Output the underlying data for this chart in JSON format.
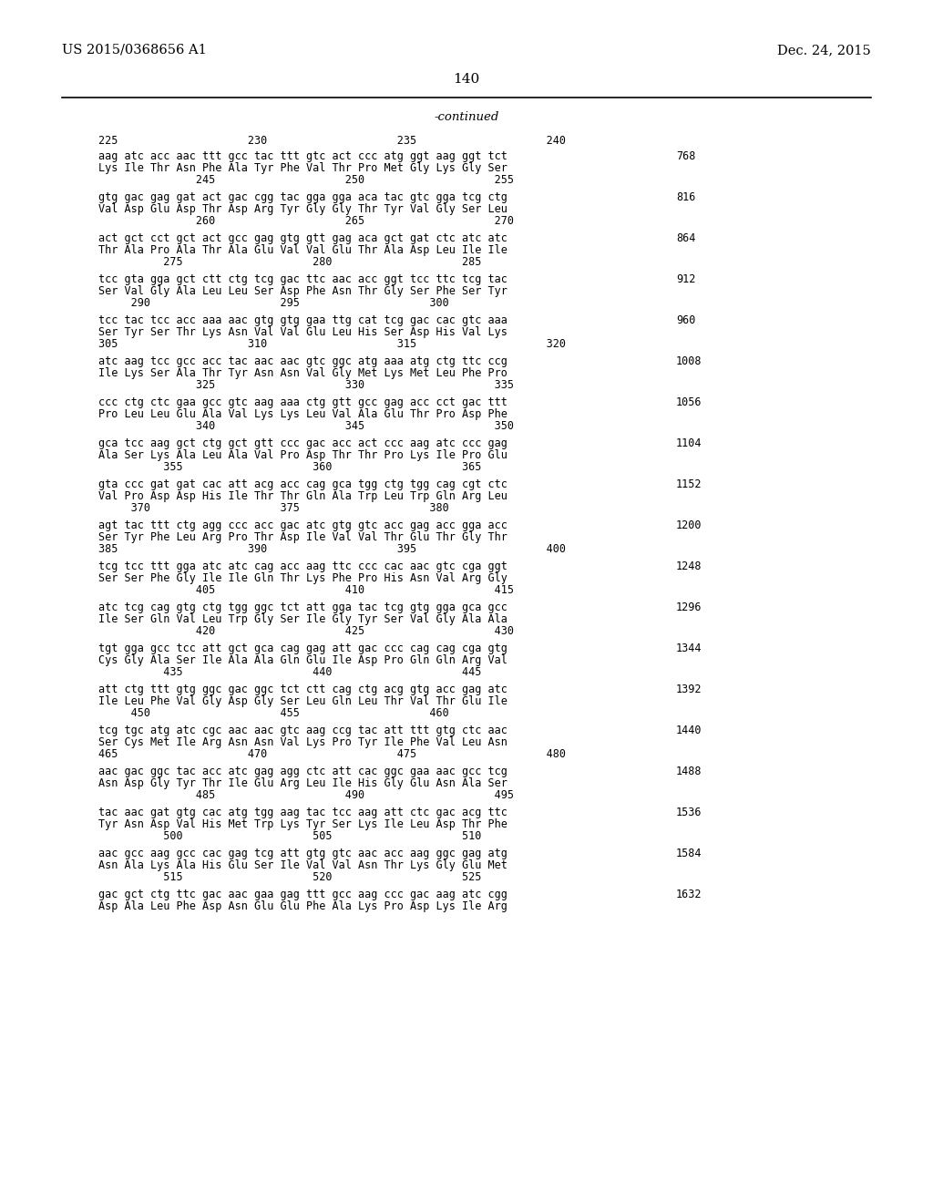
{
  "header_left": "US 2015/0368656 A1",
  "header_right": "Dec. 24, 2015",
  "page_number": "140",
  "continued_label": "-continued",
  "background_color": "#ffffff",
  "text_color": "#000000",
  "top_ruler": "225                    230                    235                    240",
  "sequence_blocks": [
    {
      "dna_line": "aag atc acc aac ttt gcc tac ttt gtc act ccc atg ggt aag ggt tct",
      "aa_line": "Lys Ile Thr Asn Phe Ala Tyr Phe Val Thr Pro Met Gly Lys Gly Ser",
      "sub_ruler": "               245                    250                    255",
      "num": "768"
    },
    {
      "dna_line": "gtg gac gag gat act gac cgg tac gga gga aca tac gtc gga tcg ctg",
      "aa_line": "Val Asp Glu Asp Thr Asp Arg Tyr Gly Gly Thr Tyr Val Gly Ser Leu",
      "sub_ruler": "               260                    265                    270",
      "num": "816"
    },
    {
      "dna_line": "act gct cct gct act gcc gag gtg gtt gag aca gct gat ctc atc atc",
      "aa_line": "Thr Ala Pro Ala Thr Ala Glu Val Val Glu Thr Ala Asp Leu Ile Ile",
      "sub_ruler": "          275                    280                    285",
      "num": "864"
    },
    {
      "dna_line": "tcc gta gga gct ctt ctg tcg gac ttc aac acc ggt tcc ttc tcg tac",
      "aa_line": "Ser Val Gly Ala Leu Leu Ser Asp Phe Asn Thr Gly Ser Phe Ser Tyr",
      "sub_ruler": "     290                    295                    300",
      "num": "912"
    },
    {
      "dna_line": "tcc tac tcc acc aaa aac gtg gtg gaa ttg cat tcg gac cac gtc aaa",
      "aa_line": "Ser Tyr Ser Thr Lys Asn Val Val Glu Leu His Ser Asp His Val Lys",
      "sub_ruler": "305                    310                    315                    320",
      "num": "960"
    },
    {
      "dna_line": "atc aag tcc gcc acc tac aac aac gtc ggc atg aaa atg ctg ttc ccg",
      "aa_line": "Ile Lys Ser Ala Thr Tyr Asn Asn Val Gly Met Lys Met Leu Phe Pro",
      "sub_ruler": "               325                    330                    335",
      "num": "1008"
    },
    {
      "dna_line": "ccc ctg ctc gaa gcc gtc aag aaa ctg gtt gcc gag acc cct gac ttt",
      "aa_line": "Pro Leu Leu Glu Ala Val Lys Lys Leu Val Ala Glu Thr Pro Asp Phe",
      "sub_ruler": "               340                    345                    350",
      "num": "1056"
    },
    {
      "dna_line": "gca tcc aag gct ctg gct gtt ccc gac acc act ccc aag atc ccc gag",
      "aa_line": "Ala Ser Lys Ala Leu Ala Val Pro Asp Thr Thr Pro Lys Ile Pro Glu",
      "sub_ruler": "          355                    360                    365",
      "num": "1104"
    },
    {
      "dna_line": "gta ccc gat gat cac att acg acc cag gca tgg ctg tgg cag cgt ctc",
      "aa_line": "Val Pro Asp Asp His Ile Thr Thr Gln Ala Trp Leu Trp Gln Arg Leu",
      "sub_ruler": "     370                    375                    380",
      "num": "1152"
    },
    {
      "dna_line": "agt tac ttt ctg agg ccc acc gac atc gtg gtc acc gag acc gga acc",
      "aa_line": "Ser Tyr Phe Leu Arg Pro Thr Asp Ile Val Val Thr Glu Thr Gly Thr",
      "sub_ruler": "385                    390                    395                    400",
      "num": "1200"
    },
    {
      "dna_line": "tcg tcc ttt gga atc atc cag acc aag ttc ccc cac aac gtc cga ggt",
      "aa_line": "Ser Ser Phe Gly Ile Ile Gln Thr Lys Phe Pro His Asn Val Arg Gly",
      "sub_ruler": "               405                    410                    415",
      "num": "1248"
    },
    {
      "dna_line": "atc tcg cag gtg ctg tgg ggc tct att gga tac tcg gtg gga gca gcc",
      "aa_line": "Ile Ser Gln Val Leu Trp Gly Ser Ile Gly Tyr Ser Val Gly Ala Ala",
      "sub_ruler": "               420                    425                    430",
      "num": "1296"
    },
    {
      "dna_line": "tgt gga gcc tcc att gct gca cag gag att gac ccc cag cag cga gtg",
      "aa_line": "Cys Gly Ala Ser Ile Ala Ala Gln Glu Ile Asp Pro Gln Gln Arg Val",
      "sub_ruler": "          435                    440                    445",
      "num": "1344"
    },
    {
      "dna_line": "att ctg ttt gtg ggc gac ggc tct ctt cag ctg acg gtg acc gag atc",
      "aa_line": "Ile Leu Phe Val Gly Asp Gly Ser Leu Gln Leu Thr Val Thr Glu Ile",
      "sub_ruler": "     450                    455                    460",
      "num": "1392"
    },
    {
      "dna_line": "tcg tgc atg atc cgc aac aac gtc aag ccg tac att ttt gtg ctc aac",
      "aa_line": "Ser Cys Met Ile Arg Asn Asn Val Lys Pro Tyr Ile Phe Val Leu Asn",
      "sub_ruler": "465                    470                    475                    480",
      "num": "1440"
    },
    {
      "dna_line": "aac gac ggc tac acc atc gag agg ctc att cac ggc gaa aac gcc tcg",
      "aa_line": "Asn Asp Gly Tyr Thr Ile Glu Arg Leu Ile His Gly Glu Asn Ala Ser",
      "sub_ruler": "               485                    490                    495",
      "num": "1488"
    },
    {
      "dna_line": "tac aac gat gtg cac atg tgg aag tac tcc aag att ctc gac acg ttc",
      "aa_line": "Tyr Asn Asp Val His Met Trp Lys Tyr Ser Lys Ile Leu Asp Thr Phe",
      "sub_ruler": "          500                    505                    510",
      "num": "1536"
    },
    {
      "dna_line": "aac gcc aag gcc cac gag tcg att gtg gtc aac acc aag ggc gag atg",
      "aa_line": "Asn Ala Lys Ala His Glu Ser Ile Val Val Asn Thr Lys Gly Glu Met",
      "sub_ruler": "          515                    520                    525",
      "num": "1584"
    },
    {
      "dna_line": "gac gct ctg ttc gac aac gaa gag ttt gcc aag ccc gac aag atc cgg",
      "aa_line": "Asp Ala Leu Phe Asp Asn Glu Glu Phe Ala Lys Pro Asp Lys Ile Arg",
      "sub_ruler": "",
      "num": "1632"
    }
  ]
}
